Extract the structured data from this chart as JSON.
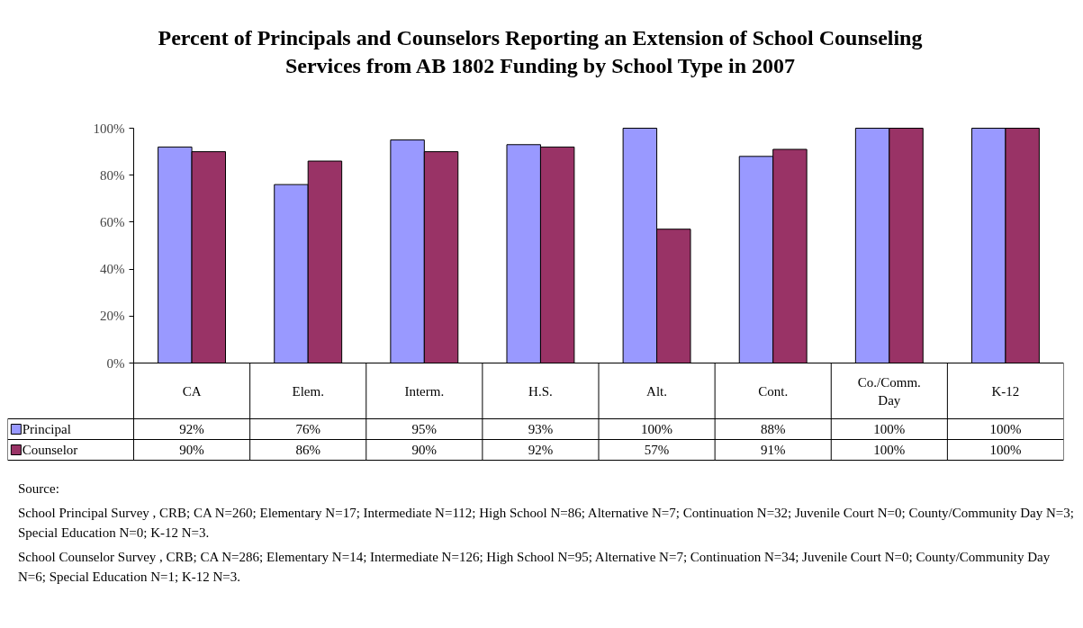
{
  "chart_data": {
    "type": "bar",
    "title": "Percent of Principals and Counselors Reporting an Extension of School Counseling Services from AB 1802 Funding by School Type in 2007",
    "categories": [
      "CA",
      "Elem.",
      "Interm.",
      "H.S.",
      "Alt.",
      "Cont.",
      "Co./Comm. Day",
      "K-12"
    ],
    "series": [
      {
        "name": "Principal",
        "color": "#9999ff",
        "values": [
          92,
          76,
          95,
          93,
          100,
          88,
          100,
          100
        ],
        "value_labels": [
          "92%",
          "76%",
          "95%",
          "93%",
          "100%",
          "88%",
          "100%",
          "100%"
        ]
      },
      {
        "name": "Counselor",
        "color": "#993366",
        "values": [
          90,
          86,
          90,
          92,
          57,
          91,
          100,
          100
        ],
        "value_labels": [
          "90%",
          "86%",
          "90%",
          "92%",
          "57%",
          "91%",
          "100%",
          "100%"
        ]
      }
    ],
    "ylim": [
      0,
      100
    ],
    "yticks": [
      {
        "value": 0,
        "label": "0%"
      },
      {
        "value": 20,
        "label": "20%"
      },
      {
        "value": 40,
        "label": "40%"
      },
      {
        "value": 60,
        "label": "60%"
      },
      {
        "value": 80,
        "label": "80%"
      },
      {
        "value": 100,
        "label": "100%"
      }
    ],
    "grid": false,
    "legend": "bottom",
    "annotations": [
      "Source:",
      "School Principal Survey , CRB; CA N=260; Elementary N=17; Intermediate N=112; High School N=86; Alternative N=7; Continuation N=32; Juvenile Court N=0; County/Community Day N=3; Special Education N=0; K-12 N=3.",
      "School Counselor Survey , CRB; CA N=286; Elementary N=14; Intermediate N=126; High School N=95; Alternative N=7; Continuation N=34; Juvenile Court N=0; County/Community Day N=6; Special Education N=1; K-12 N=3."
    ]
  }
}
